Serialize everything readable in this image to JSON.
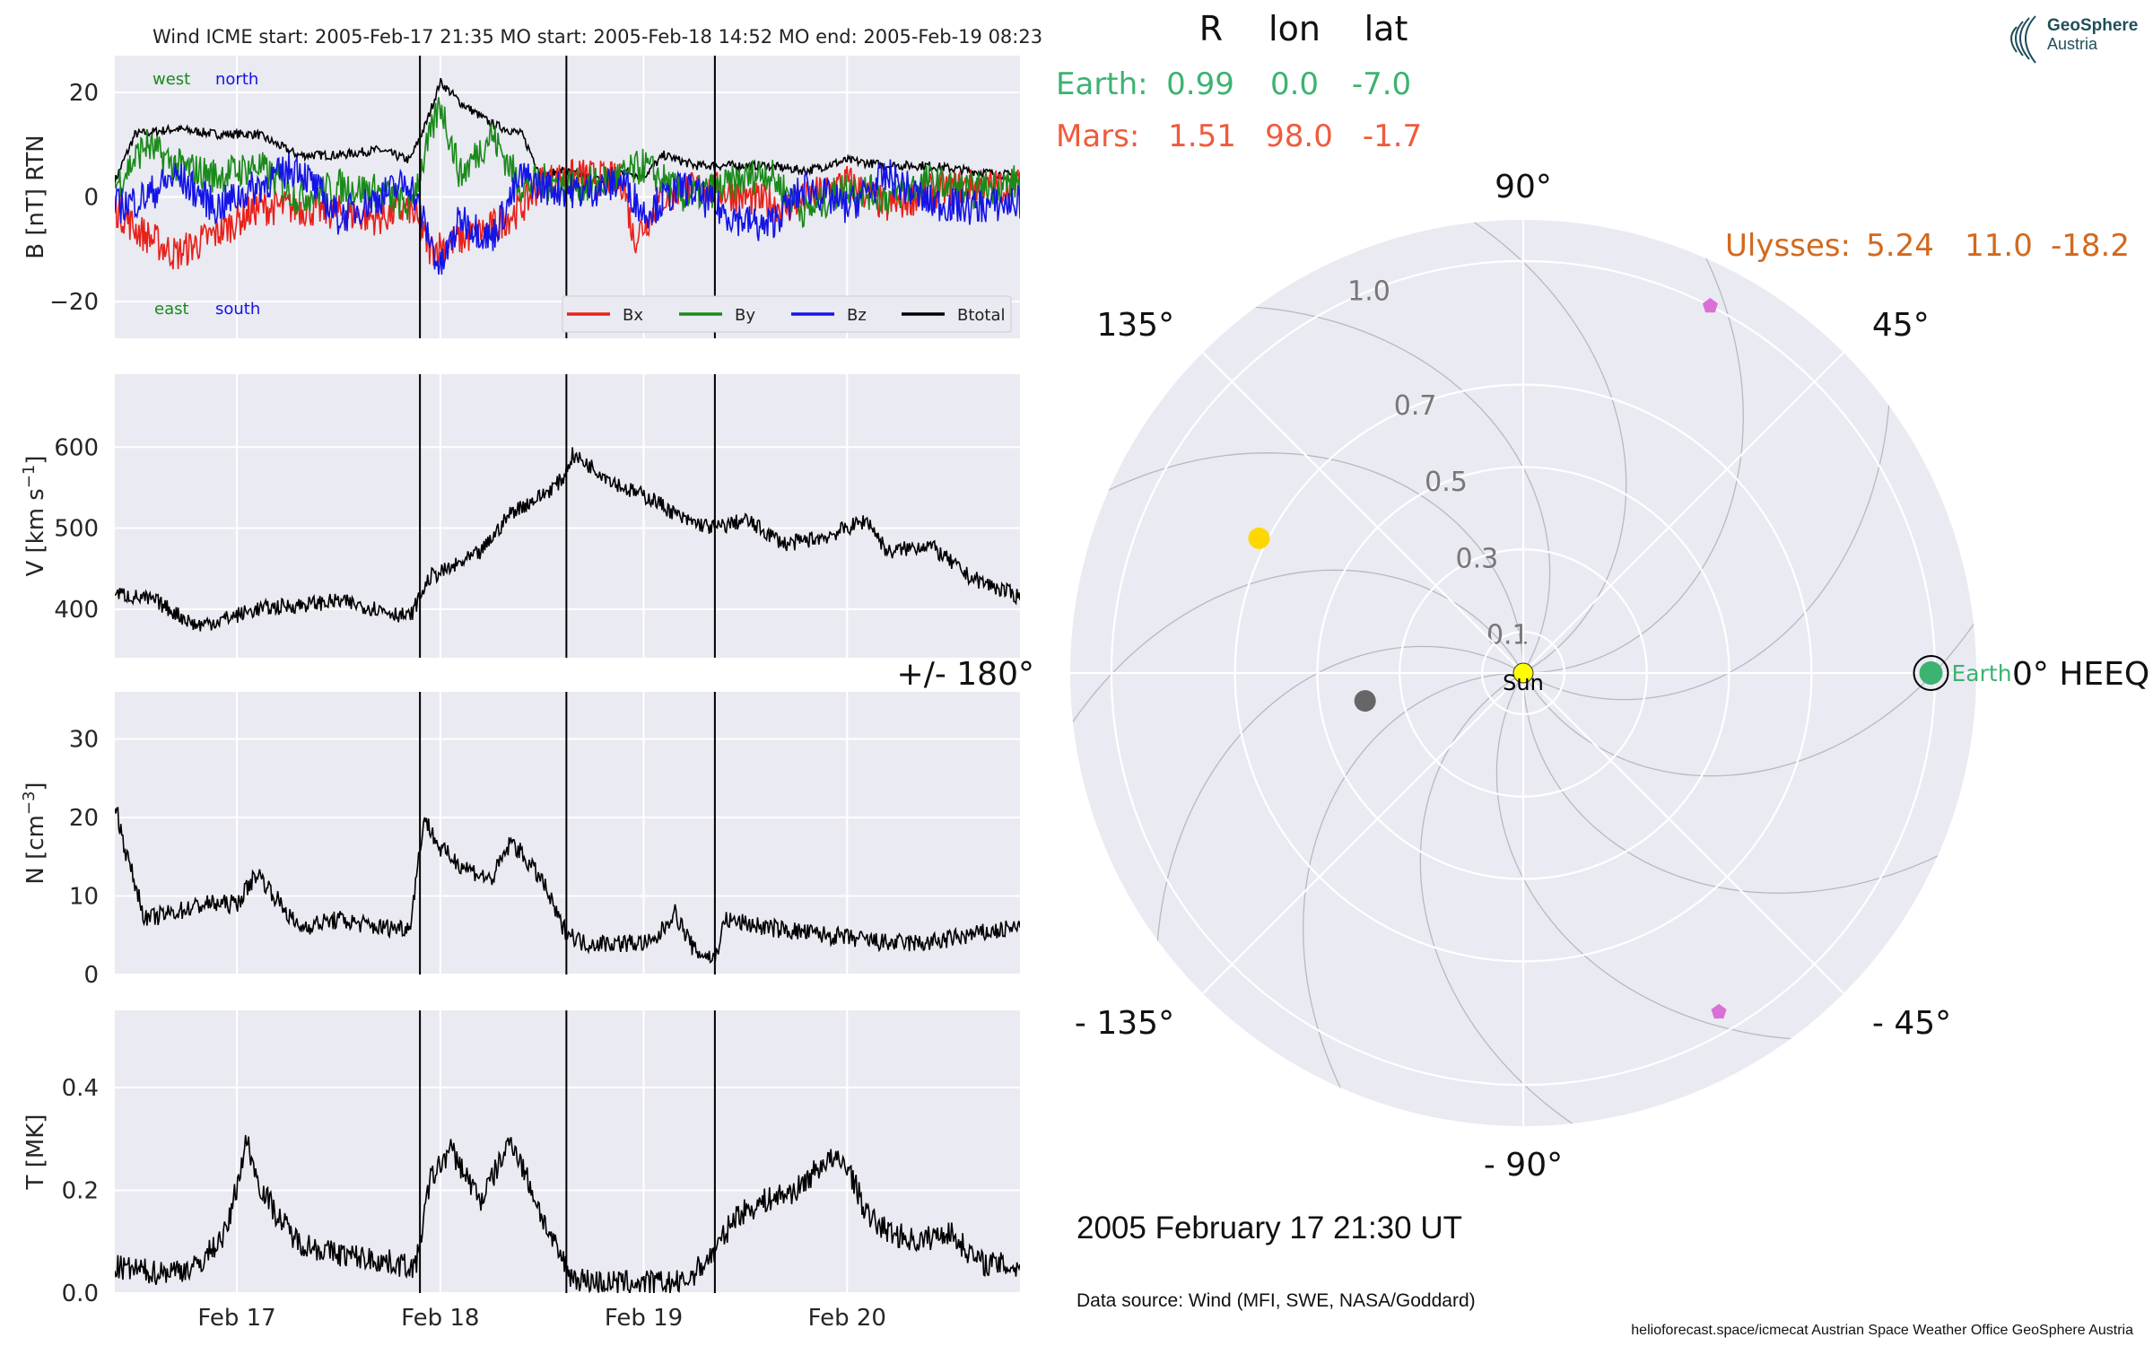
{
  "header": {
    "title": "Wind    ICME start: 2005-Feb-17 21:35   MO start: 2005-Feb-18 14:52   MO end: 2005-Feb-19 08:23"
  },
  "logo": {
    "line1": "GeoSphere",
    "line2": "Austria"
  },
  "colors": {
    "panel_bg": "#eaeaf2",
    "bx": "#e8211a",
    "by": "#1a8a1a",
    "bz": "#1414e6",
    "btotal": "#000000",
    "earth": "#3cb371",
    "mars": "#f05a3c",
    "ulysses": "#d2691e",
    "sun": "#ffff00",
    "planet_yellow": "#ffd700",
    "planet_grey": "#666666",
    "pentagon": "#da70d6"
  },
  "chart_data": [
    {
      "type": "line",
      "id": "B",
      "ylabel": "B [nT] RTN",
      "ylim": [
        -27,
        27
      ],
      "yticks": [
        -20,
        0,
        20
      ],
      "xlim": [
        0,
        4.45
      ],
      "xtick_labels": [
        {
          "x": 0.6,
          "label": "Feb 17"
        },
        {
          "x": 1.6,
          "label": "Feb 18"
        },
        {
          "x": 2.6,
          "label": "Feb 19"
        },
        {
          "x": 3.6,
          "label": "Feb 20"
        }
      ],
      "annotations": [
        {
          "text": "west",
          "color": "#1a8a1a",
          "pos": "top-left"
        },
        {
          "text": "north",
          "color": "#1414e6",
          "pos": "top-left"
        },
        {
          "text": "east",
          "color": "#1a8a1a",
          "pos": "bottom-left"
        },
        {
          "text": "south",
          "color": "#1414e6",
          "pos": "bottom-left"
        }
      ],
      "legend": [
        "Bx",
        "By",
        "Bz",
        "Btotal"
      ],
      "legend_position": "lower-right",
      "series": [
        {
          "name": "Btotal",
          "x": [
            0,
            0.1,
            0.3,
            0.5,
            0.7,
            0.9,
            1.1,
            1.3,
            1.45,
            1.53,
            1.6,
            1.7,
            1.85,
            2.0,
            2.1,
            2.2,
            2.3,
            2.4,
            2.5,
            2.6,
            2.7,
            2.85,
            3.0,
            3.2,
            3.4,
            3.6,
            3.8,
            4.0,
            4.2,
            4.45
          ],
          "y": [
            3,
            12,
            13,
            12,
            12,
            8,
            8,
            9,
            7,
            14,
            22,
            18,
            14,
            12,
            4,
            5,
            4,
            3,
            5,
            4,
            8,
            6,
            6,
            6,
            5,
            7,
            6,
            6,
            5,
            4
          ]
        },
        {
          "name": "Bx",
          "x": [
            0,
            0.1,
            0.3,
            0.5,
            0.7,
            0.9,
            1.1,
            1.3,
            1.45,
            1.55,
            1.7,
            1.85,
            2.0,
            2.1,
            2.3,
            2.5,
            2.55,
            2.7,
            2.9,
            3.1,
            3.3,
            3.6,
            3.8,
            4.0,
            4.2,
            4.45
          ],
          "y": [
            -2,
            -6,
            -11,
            -7,
            -2,
            -2,
            -3,
            -4,
            -2,
            -10,
            -8,
            -6,
            -2,
            3,
            4,
            3,
            -8,
            0,
            2,
            0,
            -2,
            3,
            -2,
            1,
            2,
            2
          ]
        },
        {
          "name": "By",
          "x": [
            0,
            0.15,
            0.3,
            0.5,
            0.7,
            0.9,
            1.1,
            1.3,
            1.45,
            1.6,
            1.7,
            1.85,
            2.0,
            2.1,
            2.3,
            2.5,
            2.6,
            2.8,
            3.0,
            3.2,
            3.4,
            3.6,
            3.8,
            4.0,
            4.2,
            4.45
          ],
          "y": [
            2,
            10,
            6,
            4,
            6,
            0,
            2,
            1,
            -2,
            18,
            4,
            12,
            2,
            3,
            2,
            4,
            6,
            0,
            2,
            5,
            -3,
            2,
            0,
            3,
            1,
            3
          ]
        },
        {
          "name": "Bz",
          "x": [
            0,
            0.15,
            0.3,
            0.5,
            0.7,
            0.9,
            1.1,
            1.3,
            1.45,
            1.6,
            1.7,
            1.85,
            2.0,
            2.1,
            2.3,
            2.5,
            2.6,
            2.8,
            3.0,
            3.2,
            3.4,
            3.6,
            3.8,
            4.0,
            4.2,
            4.45
          ],
          "y": [
            -2,
            0,
            4,
            -2,
            2,
            6,
            -4,
            0,
            3,
            -14,
            -4,
            -8,
            4,
            2,
            1,
            3,
            -3,
            2,
            -3,
            -6,
            2,
            -2,
            4,
            -1,
            -2,
            -1
          ]
        }
      ],
      "vlines": [
        1.5,
        2.22,
        2.95
      ]
    },
    {
      "type": "line",
      "id": "V",
      "ylabel": "V [km s$^{-1}$]",
      "ylim": [
        340,
        690
      ],
      "yticks": [
        400,
        500,
        600
      ],
      "series": [
        {
          "name": "V",
          "x": [
            0,
            0.2,
            0.4,
            0.5,
            0.7,
            0.9,
            1.1,
            1.3,
            1.45,
            1.55,
            1.65,
            1.8,
            1.95,
            2.1,
            2.2,
            2.25,
            2.35,
            2.5,
            2.65,
            2.8,
            2.95,
            3.1,
            3.3,
            3.5,
            3.7,
            3.8,
            4.0,
            4.2,
            4.45
          ],
          "y": [
            420,
            410,
            380,
            385,
            400,
            405,
            410,
            400,
            390,
            440,
            450,
            470,
            520,
            540,
            560,
            590,
            575,
            550,
            535,
            510,
            500,
            510,
            480,
            490,
            510,
            470,
            480,
            440,
            415
          ]
        }
      ],
      "vlines": [
        1.5,
        2.22,
        2.95
      ]
    },
    {
      "type": "line",
      "id": "N",
      "ylabel": "N [cm$^{-3}$]",
      "ylim": [
        0,
        36
      ],
      "yticks": [
        0,
        10,
        20,
        30
      ],
      "series": [
        {
          "name": "N",
          "x": [
            0,
            0.05,
            0.15,
            0.3,
            0.45,
            0.6,
            0.7,
            0.9,
            1.1,
            1.3,
            1.45,
            1.52,
            1.6,
            1.7,
            1.85,
            1.95,
            2.1,
            2.2,
            2.3,
            2.5,
            2.65,
            2.75,
            2.85,
            2.95,
            3.0,
            3.2,
            3.5,
            3.8,
            4.0,
            4.2,
            4.45
          ],
          "y": [
            22,
            16,
            7,
            8,
            9,
            9,
            13,
            6,
            7,
            6,
            6,
            20,
            16,
            14,
            12,
            17,
            12,
            6,
            4,
            4,
            4,
            8,
            3,
            2,
            7,
            6,
            5,
            4,
            4,
            5,
            6
          ]
        }
      ],
      "vlines": [
        1.5,
        2.22,
        2.95
      ]
    },
    {
      "type": "line",
      "id": "T",
      "ylabel": "T [MK]",
      "ylim": [
        0,
        0.55
      ],
      "yticks": [
        0.0,
        0.2,
        0.4
      ],
      "series": [
        {
          "name": "T",
          "x": [
            0,
            0.2,
            0.4,
            0.55,
            0.65,
            0.7,
            0.8,
            0.9,
            1.05,
            1.2,
            1.35,
            1.48,
            1.55,
            1.65,
            1.8,
            1.95,
            2.05,
            2.15,
            2.25,
            2.4,
            2.6,
            2.8,
            2.95,
            3.05,
            3.2,
            3.35,
            3.5,
            3.6,
            3.7,
            3.8,
            3.95,
            4.1,
            4.25,
            4.45
          ],
          "y": [
            0.05,
            0.04,
            0.05,
            0.12,
            0.3,
            0.22,
            0.15,
            0.1,
            0.08,
            0.07,
            0.06,
            0.05,
            0.22,
            0.28,
            0.18,
            0.3,
            0.2,
            0.1,
            0.03,
            0.02,
            0.02,
            0.02,
            0.08,
            0.15,
            0.18,
            0.2,
            0.26,
            0.25,
            0.15,
            0.12,
            0.1,
            0.12,
            0.06,
            0.05
          ]
        }
      ],
      "vlines": [
        1.5,
        2.22,
        2.95
      ]
    },
    {
      "type": "polar",
      "id": "positions",
      "rlim": [
        0,
        1.1
      ],
      "rticks": [
        0.1,
        0.3,
        0.5,
        0.7,
        1.0
      ],
      "angle_labels": [
        {
          "deg": 0,
          "label": "0° HEEQ"
        },
        {
          "deg": 45,
          "label": "45°"
        },
        {
          "deg": 90,
          "label": "90°"
        },
        {
          "deg": 135,
          "label": "135°"
        },
        {
          "deg": 180,
          "label": "+/- 180°"
        },
        {
          "deg": -135,
          "label": "- 135°"
        },
        {
          "deg": -90,
          "label": "- 90°"
        },
        {
          "deg": -45,
          "label": "- 45°"
        }
      ],
      "markers": [
        {
          "name": "Sun",
          "label": "Sun",
          "r": 0,
          "lon": 0,
          "color": "#ffff00"
        },
        {
          "name": "Earth",
          "label": "Earth",
          "r": 0.99,
          "lon": 0,
          "color": "#3cb371"
        },
        {
          "name": "planet-yellow",
          "label": "",
          "r": 0.72,
          "lon": 153,
          "color": "#ffd700"
        },
        {
          "name": "planet-grey",
          "label": "",
          "r": 0.39,
          "lon": -170,
          "color": "#666666"
        },
        {
          "name": "pentagon-top",
          "label": "",
          "r": 1.0,
          "lon": 63,
          "color": "#da70d6"
        },
        {
          "name": "pentagon-bottom",
          "label": "",
          "r": 0.95,
          "lon": -60,
          "color": "#da70d6"
        }
      ]
    }
  ],
  "position_table": {
    "headers": [
      "R",
      "lon",
      "lat"
    ],
    "rows": [
      {
        "name": "Earth:",
        "R": "0.99",
        "lon": "0.0",
        "lat": "-7.0"
      },
      {
        "name": "Mars:",
        "R": "1.51",
        "lon": "98.0",
        "lat": "-1.7"
      }
    ],
    "ulysses": {
      "name": "Ulysses:",
      "R": "5.24",
      "lon": "11.0",
      "lat": "-18.2"
    }
  },
  "date_text": "2005 February 17  21:30 UT",
  "data_source": "Data source: Wind (MFI, SWE, NASA/Goddard)",
  "footer": "helioforecast.space/icmecat   Austrian Space Weather Office   GeoSphere Austria"
}
